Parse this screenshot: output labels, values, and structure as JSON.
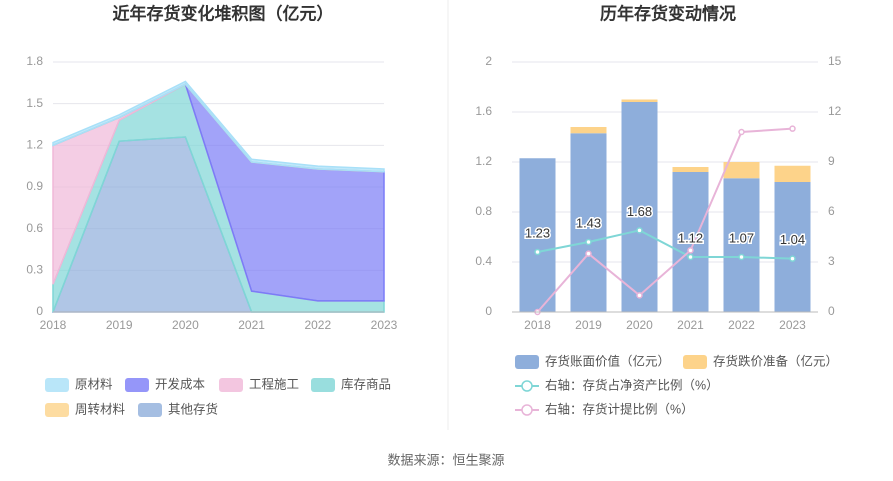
{
  "chart_data": [
    {
      "type": "area",
      "title": "近年存货变化堆积图（亿元）",
      "x": [
        "2018",
        "2019",
        "2020",
        "2021",
        "2022",
        "2023"
      ],
      "ylim": [
        0,
        1.8
      ],
      "yticks": [
        0,
        0.3,
        0.6,
        0.9,
        1.2,
        1.5,
        1.8
      ],
      "grid": true,
      "stacked": true,
      "series": [
        {
          "name": "其他存货",
          "color": "#8eaedb",
          "values": [
            0,
            1.23,
            1.26,
            0,
            0,
            0
          ]
        },
        {
          "name": "库存商品",
          "color": "#7fd6d6",
          "values": [
            0.2,
            0.15,
            0.38,
            0.15,
            0.08,
            0.08
          ]
        },
        {
          "name": "工程施工",
          "color": "#f0b8d8",
          "values": [
            1.0,
            0.02,
            0,
            0,
            0,
            0
          ]
        },
        {
          "name": "开发成本",
          "color": "#7b7cf7",
          "values": [
            0,
            0,
            0,
            0.93,
            0.95,
            0.93
          ]
        },
        {
          "name": "周转材料",
          "color": "#fdd38a",
          "values": [
            0,
            0,
            0,
            0,
            0,
            0
          ]
        },
        {
          "name": "原材料",
          "color": "#a8e0f8",
          "values": [
            0.02,
            0.02,
            0.02,
            0.02,
            0.02,
            0.02
          ]
        }
      ]
    },
    {
      "type": "bar",
      "title": "历年存货变动情况",
      "categories": [
        "2018",
        "2019",
        "2020",
        "2021",
        "2022",
        "2023"
      ],
      "ylim": [
        0,
        2
      ],
      "yticks": [
        0,
        0.4,
        0.8,
        1.2,
        1.6,
        2
      ],
      "y2lim": [
        0,
        15
      ],
      "y2ticks": [
        0,
        3,
        6,
        9,
        12,
        15
      ],
      "grid": true,
      "stacked": true,
      "series": [
        {
          "name": "存货账面价值（亿元）",
          "color": "#8eaedb",
          "values": [
            1.23,
            1.43,
            1.68,
            1.12,
            1.07,
            1.04
          ]
        },
        {
          "name": "存货跌价准备（亿元）",
          "color": "#fdd38a",
          "values": [
            0,
            0.05,
            0.02,
            0.04,
            0.13,
            0.13
          ]
        },
        {
          "name": "右轴：存货占净资产比例（%）",
          "color": "#7fd6d6",
          "axis": "y2",
          "values": [
            3.6,
            4.2,
            4.9,
            3.3,
            3.3,
            3.2
          ]
        },
        {
          "name": "右轴：存货计提比例（%）",
          "color": "#e8b4d8",
          "axis": "y2",
          "values": [
            0,
            3.5,
            1.0,
            3.7,
            10.8,
            11.0
          ]
        }
      ]
    }
  ],
  "source": "数据来源：恒生聚源"
}
